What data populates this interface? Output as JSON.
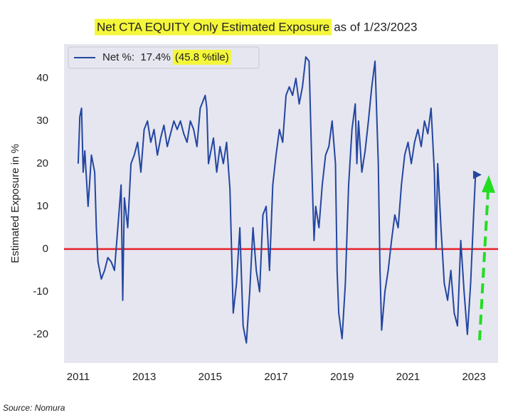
{
  "chart_data": {
    "type": "line",
    "title": "Net CTA EQUITY Only Estimated Exposure",
    "title_suffix": "as of 1/23/2023",
    "y_label": "Estimated Exposure in %",
    "legend_note": "(45.8 %tile)",
    "source": "Source: Nomura",
    "x": [
      2011.0,
      2011.05,
      2011.1,
      2011.15,
      2011.2,
      2011.3,
      2011.4,
      2011.5,
      2011.55,
      2011.6,
      2011.7,
      2011.8,
      2011.9,
      2012.0,
      2012.1,
      2012.2,
      2012.3,
      2012.35,
      2012.4,
      2012.5,
      2012.6,
      2012.7,
      2012.8,
      2012.9,
      2013.0,
      2013.1,
      2013.2,
      2013.3,
      2013.4,
      2013.5,
      2013.6,
      2013.7,
      2013.8,
      2013.9,
      2014.0,
      2014.1,
      2014.2,
      2014.3,
      2014.4,
      2014.5,
      2014.6,
      2014.7,
      2014.8,
      2014.85,
      2014.9,
      2014.95,
      2015.0,
      2015.1,
      2015.2,
      2015.3,
      2015.4,
      2015.5,
      2015.6,
      2015.7,
      2015.8,
      2015.9,
      2016.0,
      2016.1,
      2016.2,
      2016.3,
      2016.4,
      2016.5,
      2016.6,
      2016.7,
      2016.8,
      2016.9,
      2017.0,
      2017.1,
      2017.2,
      2017.3,
      2017.4,
      2017.5,
      2017.6,
      2017.7,
      2017.8,
      2017.9,
      2018.0,
      2018.1,
      2018.15,
      2018.2,
      2018.3,
      2018.4,
      2018.5,
      2018.6,
      2018.7,
      2018.8,
      2018.85,
      2018.9,
      2019.0,
      2019.1,
      2019.2,
      2019.3,
      2019.4,
      2019.45,
      2019.5,
      2019.6,
      2019.7,
      2019.8,
      2019.9,
      2020.0,
      2020.1,
      2020.15,
      2020.2,
      2020.3,
      2020.4,
      2020.5,
      2020.6,
      2020.7,
      2020.8,
      2020.9,
      2021.0,
      2021.1,
      2021.2,
      2021.3,
      2021.4,
      2021.5,
      2021.6,
      2021.7,
      2021.8,
      2021.85,
      2021.9,
      2022.0,
      2022.1,
      2022.2,
      2022.3,
      2022.4,
      2022.5,
      2022.6,
      2022.7,
      2022.8,
      2022.9,
      2023.0,
      2023.05,
      2023.06
    ],
    "series": [
      {
        "name": "Net %:  17.4%",
        "color": "#2346a0",
        "values": [
          20,
          31,
          33,
          18,
          23,
          10,
          22,
          18,
          5,
          -3,
          -7,
          -5,
          -2,
          -3,
          -5,
          5,
          15,
          -12,
          12,
          5,
          20,
          22,
          25,
          18,
          28,
          30,
          25,
          28,
          22,
          26,
          29,
          24,
          27,
          30,
          28,
          30,
          27,
          25,
          30,
          28,
          24,
          33,
          35,
          36,
          33,
          20,
          22,
          26,
          18,
          24,
          20,
          25,
          14,
          -15,
          -8,
          5,
          -18,
          -22,
          -10,
          5,
          -5,
          -10,
          8,
          10,
          -5,
          15,
          22,
          28,
          25,
          36,
          38,
          36,
          40,
          34,
          38,
          45,
          44,
          15,
          2,
          10,
          5,
          15,
          22,
          24,
          30,
          20,
          -5,
          -15,
          -21,
          -8,
          15,
          28,
          34,
          20,
          30,
          18,
          23,
          30,
          38,
          44,
          20,
          -5,
          -19,
          -10,
          -5,
          2,
          8,
          5,
          15,
          22,
          25,
          20,
          25,
          28,
          24,
          30,
          27,
          33,
          18,
          0,
          20,
          5,
          -8,
          -12,
          -5,
          -15,
          -18,
          2,
          -10,
          -20,
          -8,
          10,
          18,
          17.4
        ]
      }
    ],
    "xlim": [
      2010.57,
      2023.73
    ],
    "xticks": [
      2011,
      2013,
      2015,
      2017,
      2019,
      2021,
      2023
    ],
    "ylim": [
      -26.7,
      48
    ],
    "yticks": [
      -20,
      -10,
      0,
      10,
      20,
      30,
      40
    ],
    "hline": {
      "value": 0,
      "color": "#e8202a"
    },
    "grid": false,
    "legend": "upper left",
    "background": "#e6e6f0"
  }
}
